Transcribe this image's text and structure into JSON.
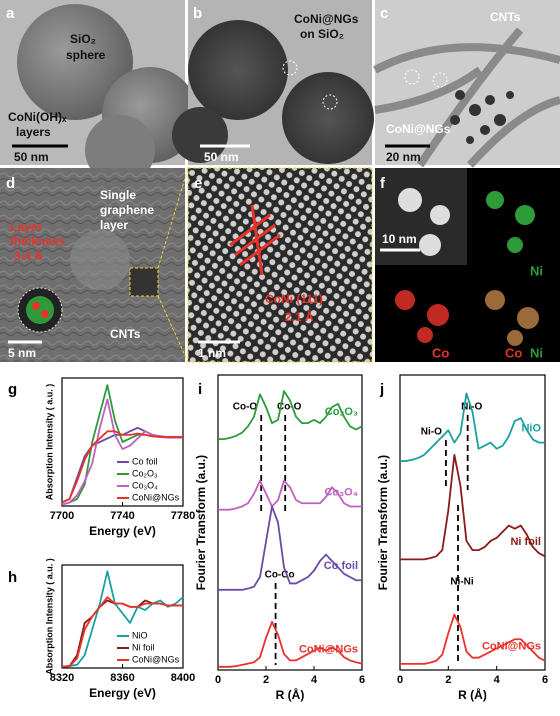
{
  "panels": [
    {
      "letter": "a",
      "labels": [
        "SiO₂",
        "sphere",
        "CoNi(OH)ₓ",
        "layers"
      ],
      "scale": "50 nm"
    },
    {
      "letter": "b",
      "labels": [
        "CoNi@NGs",
        "on SiO₂"
      ],
      "scale": "50 nm"
    },
    {
      "letter": "c",
      "labels": [
        "CNTs",
        "CoNi@NGs"
      ],
      "scale": "20 nm"
    },
    {
      "letter": "d",
      "labels": [
        "Single",
        "graphene",
        "layer",
        "Layer",
        "thickness",
        "3.4 Å",
        "CNTs"
      ],
      "scale": "5 nm"
    },
    {
      "letter": "e",
      "labels": [
        "CoNi (111)",
        "2.1 Å"
      ],
      "scale": "1 nm"
    },
    {
      "letter": "f",
      "labels": [
        "Ni",
        "Co",
        "Co",
        "Ni"
      ],
      "scale": "10 nm"
    }
  ],
  "chart_data": [
    {
      "type": "line",
      "panel": "g",
      "xlabel": "Energy (eV)",
      "ylabel": "Absorption Intensity ( a.u. )",
      "legend": "lower right",
      "x": [
        7700,
        7705,
        7710,
        7715,
        7720,
        7725,
        7730,
        7735,
        7740,
        7745,
        7750,
        7755,
        7760,
        7765,
        7770,
        7775,
        7780
      ],
      "xlim": [
        7700,
        7780
      ],
      "xticks": [
        7700,
        7740,
        7780
      ],
      "ylim": [
        0,
        1.8
      ],
      "series": [
        {
          "name": "Co foil",
          "color": "#6a4aa8",
          "values": [
            0.05,
            0.1,
            0.4,
            0.7,
            0.85,
            0.9,
            0.95,
            1.0,
            1.0,
            1.05,
            1.1,
            1.05,
            1.0,
            0.98,
            0.97,
            0.97,
            0.97
          ]
        },
        {
          "name": "Co₂O₃",
          "color": "#2e9a3a",
          "values": [
            0.02,
            0.05,
            0.1,
            0.3,
            0.9,
            1.3,
            1.7,
            1.2,
            0.9,
            0.95,
            1.0,
            1.0,
            0.98,
            0.97,
            0.97,
            0.97,
            0.97
          ]
        },
        {
          "name": "Co₃O₄",
          "color": "#c060c0",
          "values": [
            0.02,
            0.05,
            0.15,
            0.35,
            0.6,
            1.1,
            1.5,
            1.0,
            0.8,
            0.85,
            0.95,
            1.05,
            1.0,
            0.97,
            0.96,
            0.96,
            0.96
          ]
        },
        {
          "name": "CoNi@NGs",
          "color": "#e8332b",
          "values": [
            0.05,
            0.1,
            0.35,
            0.65,
            0.85,
            0.95,
            1.05,
            1.05,
            1.0,
            1.0,
            1.02,
            1.0,
            0.98,
            0.97,
            0.97,
            0.97,
            0.97
          ]
        }
      ]
    },
    {
      "type": "line",
      "panel": "h",
      "xlabel": "Energy (eV)",
      "ylabel": "Absorption Intensity ( a.u. )",
      "legend": "lower right",
      "x": [
        8320,
        8325,
        8330,
        8335,
        8340,
        8345,
        8350,
        8355,
        8360,
        8365,
        8370,
        8375,
        8380,
        8385,
        8390,
        8395,
        8400
      ],
      "xlim": [
        8320,
        8400
      ],
      "xticks": [
        8320,
        8360,
        8400
      ],
      "ylim": [
        0,
        1.6
      ],
      "series": [
        {
          "name": "NiO",
          "color": "#1aa0a0",
          "values": [
            0.02,
            0.03,
            0.05,
            0.2,
            0.6,
            1.0,
            1.5,
            1.0,
            0.85,
            0.7,
            0.95,
            0.9,
            1.0,
            1.05,
            0.95,
            1.0,
            1.1
          ]
        },
        {
          "name": "Ni foil",
          "color": "#8b1a1a",
          "values": [
            0.02,
            0.03,
            0.2,
            0.7,
            0.8,
            0.95,
            1.05,
            1.0,
            1.0,
            0.95,
            0.95,
            1.05,
            1.0,
            1.0,
            0.97,
            0.97,
            0.97
          ]
        },
        {
          "name": "CoNi@NGs",
          "color": "#e8332b",
          "values": [
            0.02,
            0.03,
            0.15,
            0.6,
            0.8,
            0.95,
            1.1,
            1.0,
            1.0,
            0.95,
            0.95,
            1.0,
            1.0,
            1.0,
            0.97,
            0.97,
            0.97
          ]
        }
      ]
    },
    {
      "type": "line",
      "panel": "i",
      "xlabel": "R (Å)",
      "ylabel": "Fourier Transform (a.u.)",
      "legend": "inline",
      "x": [
        0,
        0.25,
        0.5,
        0.75,
        1,
        1.25,
        1.5,
        1.75,
        2,
        2.25,
        2.5,
        2.75,
        3,
        3.25,
        3.5,
        3.75,
        4,
        4.25,
        4.5,
        4.75,
        5,
        5.25,
        5.5,
        5.75,
        6
      ],
      "xlim": [
        0,
        6
      ],
      "xticks": [
        0,
        2,
        4,
        6
      ],
      "ylim": [
        0,
        4.6
      ],
      "annotations": [
        {
          "text": "Co-O",
          "x": 1.8
        },
        {
          "text": "Co-O",
          "x": 2.8
        },
        {
          "text": "Co-Co",
          "x": 2.4
        }
      ],
      "series": [
        {
          "name": "Co₂O₃",
          "color": "#2e9a3a",
          "values": [
            3.6,
            3.6,
            3.62,
            3.65,
            3.7,
            3.8,
            3.95,
            4.3,
            4.1,
            3.85,
            3.9,
            4.35,
            4.2,
            3.95,
            3.85,
            3.85,
            3.9,
            3.85,
            3.95,
            4.1,
            4.15,
            3.95,
            3.8,
            3.75,
            3.8
          ]
        },
        {
          "name": "Co₃O₄",
          "color": "#c060c0",
          "values": [
            2.5,
            2.5,
            2.5,
            2.52,
            2.55,
            2.6,
            2.75,
            2.95,
            2.75,
            2.55,
            2.65,
            2.95,
            2.85,
            2.65,
            2.6,
            2.6,
            2.6,
            2.6,
            2.7,
            2.85,
            2.75,
            2.6,
            2.55,
            2.55,
            2.55
          ]
        },
        {
          "name": "Co foil",
          "color": "#6a4aa8",
          "values": [
            1.25,
            1.25,
            1.25,
            1.25,
            1.25,
            1.27,
            1.3,
            1.45,
            2.0,
            2.55,
            2.3,
            1.6,
            1.35,
            1.35,
            1.4,
            1.45,
            1.55,
            1.7,
            1.8,
            1.7,
            1.6,
            1.5,
            1.45,
            1.4,
            1.4
          ]
        },
        {
          "name": "CoNi@NGs",
          "color": "#e8332b",
          "values": [
            0.05,
            0.05,
            0.05,
            0.06,
            0.08,
            0.1,
            0.12,
            0.2,
            0.5,
            0.75,
            0.55,
            0.25,
            0.15,
            0.15,
            0.2,
            0.25,
            0.3,
            0.35,
            0.3,
            0.35,
            0.3,
            0.2,
            0.15,
            0.12,
            0.1
          ]
        }
      ]
    },
    {
      "type": "line",
      "panel": "j",
      "xlabel": "R (Å)",
      "ylabel": "Fourier Transform (a.u.)",
      "legend": "inline",
      "x": [
        0,
        0.25,
        0.5,
        0.75,
        1,
        1.25,
        1.5,
        1.75,
        2,
        2.25,
        2.5,
        2.75,
        3,
        3.25,
        3.5,
        3.75,
        4,
        4.25,
        4.5,
        4.75,
        5,
        5.25,
        5.5,
        5.75,
        6
      ],
      "xlim": [
        0,
        6
      ],
      "xticks": [
        0,
        2,
        4,
        6
      ],
      "ylim": [
        0,
        4.8
      ],
      "annotations": [
        {
          "text": "Ni-O",
          "x": 1.9
        },
        {
          "text": "Ni-O",
          "x": 2.8
        },
        {
          "text": "Ni-Ni",
          "x": 2.4
        }
      ],
      "series": [
        {
          "name": "NiO",
          "color": "#1aa0a0",
          "values": [
            3.4,
            3.4,
            3.42,
            3.45,
            3.5,
            3.6,
            3.7,
            3.8,
            3.9,
            3.7,
            3.85,
            4.5,
            4.2,
            3.6,
            3.65,
            3.7,
            3.6,
            3.65,
            3.8,
            4.05,
            4.1,
            3.9,
            3.75,
            3.7,
            3.7
          ]
        },
        {
          "name": "Ni foil",
          "color": "#8b1a1a",
          "values": [
            1.8,
            1.8,
            1.8,
            1.8,
            1.8,
            1.82,
            1.85,
            1.95,
            2.6,
            3.5,
            3.0,
            2.1,
            1.95,
            1.95,
            2.0,
            2.1,
            2.15,
            2.25,
            2.35,
            2.3,
            2.35,
            2.2,
            2.0,
            1.9,
            1.85
          ]
        },
        {
          "name": "CoNi@NGs",
          "color": "#e8332b",
          "values": [
            0.1,
            0.1,
            0.1,
            0.1,
            0.1,
            0.12,
            0.15,
            0.25,
            0.6,
            0.9,
            0.7,
            0.3,
            0.2,
            0.2,
            0.25,
            0.3,
            0.35,
            0.4,
            0.45,
            0.5,
            0.5,
            0.4,
            0.3,
            0.2,
            0.15
          ]
        }
      ]
    }
  ]
}
